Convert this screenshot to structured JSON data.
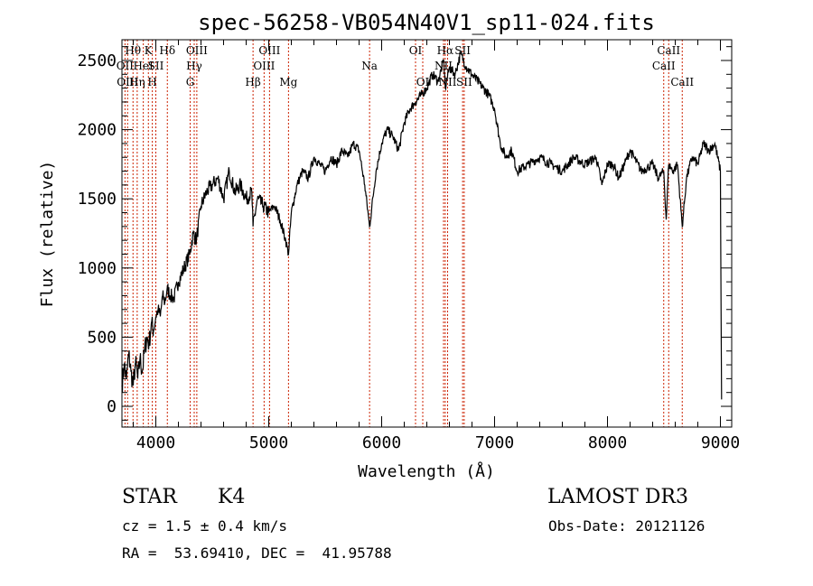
{
  "chart_data": {
    "type": "line",
    "title": "spec-56258-VB054N40V1_sp11-024.fits",
    "xlabel": "Wavelength (Å)",
    "ylabel": "Flux (relative)",
    "xlim": [
      3700,
      9100
    ],
    "ylim": [
      -150,
      2650
    ],
    "xticks": [
      4000,
      5000,
      6000,
      7000,
      8000,
      9000
    ],
    "yticks": [
      0,
      500,
      1000,
      1500,
      2000,
      2500
    ],
    "grid": false,
    "series": [
      {
        "x": [
          3700,
          3720,
          3740,
          3760,
          3780,
          3800,
          3820,
          3840,
          3860,
          3880,
          3900,
          3920,
          3940,
          3960,
          3980,
          4000,
          4020,
          4040,
          4060,
          4080,
          4100,
          4130,
          4160,
          4200,
          4250,
          4300,
          4330,
          4360,
          4400,
          4450,
          4500,
          4550,
          4600,
          4650,
          4700,
          4750,
          4800,
          4850,
          4861,
          4900,
          4950,
          5000,
          5050,
          5100,
          5150,
          5175,
          5200,
          5250,
          5300,
          5350,
          5400,
          5450,
          5500,
          5550,
          5600,
          5650,
          5700,
          5750,
          5800,
          5850,
          5893,
          5950,
          6000,
          6050,
          6100,
          6150,
          6200,
          6250,
          6300,
          6350,
          6400,
          6450,
          6500,
          6550,
          6563,
          6600,
          6650,
          6700,
          6750,
          6800,
          6850,
          6900,
          6950,
          7000,
          7050,
          7100,
          7150,
          7200,
          7300,
          7400,
          7500,
          7600,
          7700,
          7800,
          7900,
          7950,
          8000,
          8050,
          8100,
          8200,
          8300,
          8400,
          8450,
          8498,
          8520,
          8542,
          8580,
          8620,
          8662,
          8700,
          8750,
          8800,
          8850,
          8900,
          8950,
          9000,
          9010
        ],
        "y": [
          150,
          300,
          200,
          380,
          250,
          150,
          320,
          200,
          350,
          250,
          400,
          500,
          450,
          600,
          550,
          650,
          700,
          650,
          800,
          750,
          850,
          800,
          780,
          900,
          1000,
          1100,
          1250,
          1200,
          1450,
          1550,
          1600,
          1650,
          1500,
          1700,
          1550,
          1600,
          1500,
          1550,
          1300,
          1500,
          1450,
          1400,
          1450,
          1350,
          1200,
          1100,
          1400,
          1600,
          1700,
          1650,
          1800,
          1750,
          1700,
          1800,
          1750,
          1850,
          1800,
          1900,
          1850,
          1600,
          1300,
          1700,
          1900,
          2000,
          1950,
          1850,
          2050,
          2150,
          2200,
          2250,
          2300,
          2400,
          2350,
          2500,
          2300,
          2450,
          2400,
          2550,
          2450,
          2400,
          2350,
          2300,
          2250,
          2150,
          1900,
          1800,
          1850,
          1700,
          1750,
          1800,
          1750,
          1700,
          1800,
          1750,
          1800,
          1600,
          1750,
          1750,
          1650,
          1850,
          1700,
          1750,
          1650,
          1700,
          1350,
          1750,
          1700,
          1750,
          1300,
          1650,
          1800,
          1750,
          1900,
          1850,
          1900,
          1700,
          50
        ]
      }
    ],
    "line_colors": {
      "spectrum": "#000000",
      "markers": "#cc2200"
    },
    "spectral_lines": [
      {
        "wl": 3727,
        "labels": [
          "OII"
        ],
        "rows": [
          1
        ]
      },
      {
        "wl": 3750,
        "labels": [
          "OIII"
        ],
        "rows": [
          2
        ]
      },
      {
        "wl": 3798,
        "labels": [
          "Hθ"
        ],
        "rows": [
          0
        ]
      },
      {
        "wl": 3835,
        "labels": [
          "Hη"
        ],
        "rows": [
          2
        ]
      },
      {
        "wl": 3889,
        "labels": [
          "HeI"
        ],
        "rows": [
          1
        ]
      },
      {
        "wl": 3934,
        "labels": [
          "K"
        ],
        "rows": [
          0
        ]
      },
      {
        "wl": 3969,
        "labels": [
          "H"
        ],
        "rows": [
          2
        ]
      },
      {
        "wl": 4000,
        "labels": [
          "SII"
        ],
        "rows": [
          1
        ]
      },
      {
        "wl": 4102,
        "labels": [
          "Hδ"
        ],
        "rows": [
          0
        ]
      },
      {
        "wl": 4304,
        "labels": [
          "G"
        ],
        "rows": [
          2
        ]
      },
      {
        "wl": 4340,
        "labels": [
          "Hγ"
        ],
        "rows": [
          1
        ]
      },
      {
        "wl": 4363,
        "labels": [
          "OIII"
        ],
        "rows": [
          0
        ]
      },
      {
        "wl": 4861,
        "labels": [
          "Hβ"
        ],
        "rows": [
          2
        ]
      },
      {
        "wl": 4959,
        "labels": [
          "OIII"
        ],
        "rows": [
          1
        ]
      },
      {
        "wl": 5007,
        "labels": [
          "OIII"
        ],
        "rows": [
          0
        ]
      },
      {
        "wl": 5175,
        "labels": [
          "Mg"
        ],
        "rows": [
          2
        ]
      },
      {
        "wl": 5893,
        "labels": [
          "Na"
        ],
        "rows": [
          1
        ]
      },
      {
        "wl": 6300,
        "labels": [
          "OI"
        ],
        "rows": [
          0
        ]
      },
      {
        "wl": 6364,
        "labels": [
          "OI"
        ],
        "rows": [
          2
        ]
      },
      {
        "wl": 6548,
        "labels": [
          "NII"
        ],
        "rows": [
          1
        ]
      },
      {
        "wl": 6563,
        "labels": [
          "Hα"
        ],
        "rows": [
          0
        ]
      },
      {
        "wl": 6584,
        "labels": [
          "NII"
        ],
        "rows": [
          2
        ]
      },
      {
        "wl": 6717,
        "labels": [
          "SII"
        ],
        "rows": [
          0
        ]
      },
      {
        "wl": 6731,
        "labels": [
          "SII"
        ],
        "rows": [
          2
        ]
      },
      {
        "wl": 8498,
        "labels": [
          "CaII"
        ],
        "rows": [
          1
        ]
      },
      {
        "wl": 8542,
        "labels": [
          "CaII"
        ],
        "rows": [
          0
        ]
      },
      {
        "wl": 8662,
        "labels": [
          "CaII"
        ],
        "rows": [
          2
        ]
      }
    ]
  },
  "info": {
    "class": "STAR",
    "subclass": "K4",
    "survey": "LAMOST DR3",
    "cz": "cz = 1.5 ± 0.4 km/s",
    "obs_date": "Obs-Date: 20121126",
    "coords": "RA =  53.69410, DEC =  41.95788"
  }
}
